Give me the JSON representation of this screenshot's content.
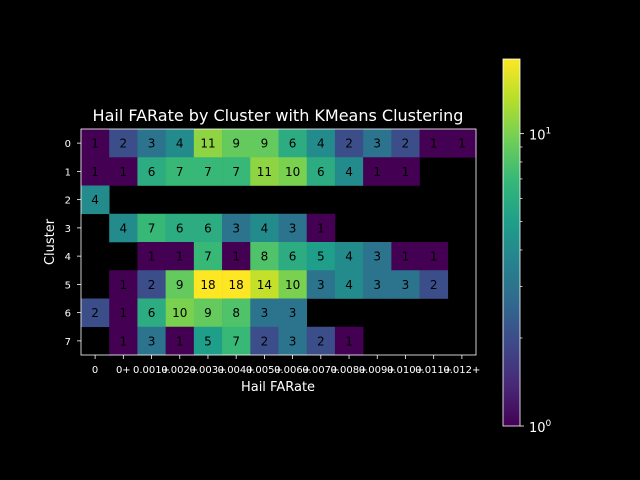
{
  "chart_data": {
    "type": "heatmap",
    "title": "Hail FARate by Cluster with KMeans Clustering",
    "xlabel": "Hail FARate",
    "ylabel": "Cluster",
    "x_ticks": [
      "0",
      "0+",
      "0.001+",
      "0.002+",
      "0.003+",
      "0.004+",
      "0.005+",
      "0.006+",
      "0.007+",
      "0.008+",
      "0.009+",
      "0.010+",
      "0.011+",
      "0.012+"
    ],
    "y_ticks": [
      "0",
      "1",
      "2",
      "3",
      "4",
      "5",
      "6",
      "7"
    ],
    "values": [
      [
        1,
        2,
        3,
        4,
        11,
        9,
        9,
        6,
        4,
        2,
        3,
        2,
        1,
        1
      ],
      [
        1,
        1,
        6,
        7,
        7,
        7,
        11,
        10,
        6,
        4,
        1,
        1,
        null,
        null
      ],
      [
        4,
        null,
        null,
        null,
        null,
        null,
        null,
        null,
        null,
        null,
        null,
        null,
        null,
        null
      ],
      [
        null,
        4,
        7,
        6,
        6,
        3,
        4,
        3,
        1,
        null,
        null,
        null,
        null,
        null
      ],
      [
        null,
        null,
        1,
        1,
        7,
        1,
        8,
        6,
        5,
        4,
        3,
        1,
        1,
        null
      ],
      [
        null,
        1,
        2,
        9,
        18,
        18,
        14,
        10,
        3,
        4,
        3,
        3,
        2,
        null
      ],
      [
        2,
        1,
        6,
        10,
        9,
        8,
        3,
        3,
        null,
        null,
        null,
        null,
        null,
        null
      ],
      [
        null,
        1,
        3,
        1,
        5,
        7,
        2,
        3,
        2,
        1,
        null,
        null,
        null,
        null
      ]
    ],
    "colormap": "viridis",
    "color_scale": "log",
    "vmin": 1,
    "vmax": 18,
    "colorbar": {
      "labels": [
        {
          "base": "10",
          "exp": "0",
          "value": 1
        },
        {
          "base": "10",
          "exp": "1",
          "value": 10
        }
      ]
    },
    "grid": false
  }
}
